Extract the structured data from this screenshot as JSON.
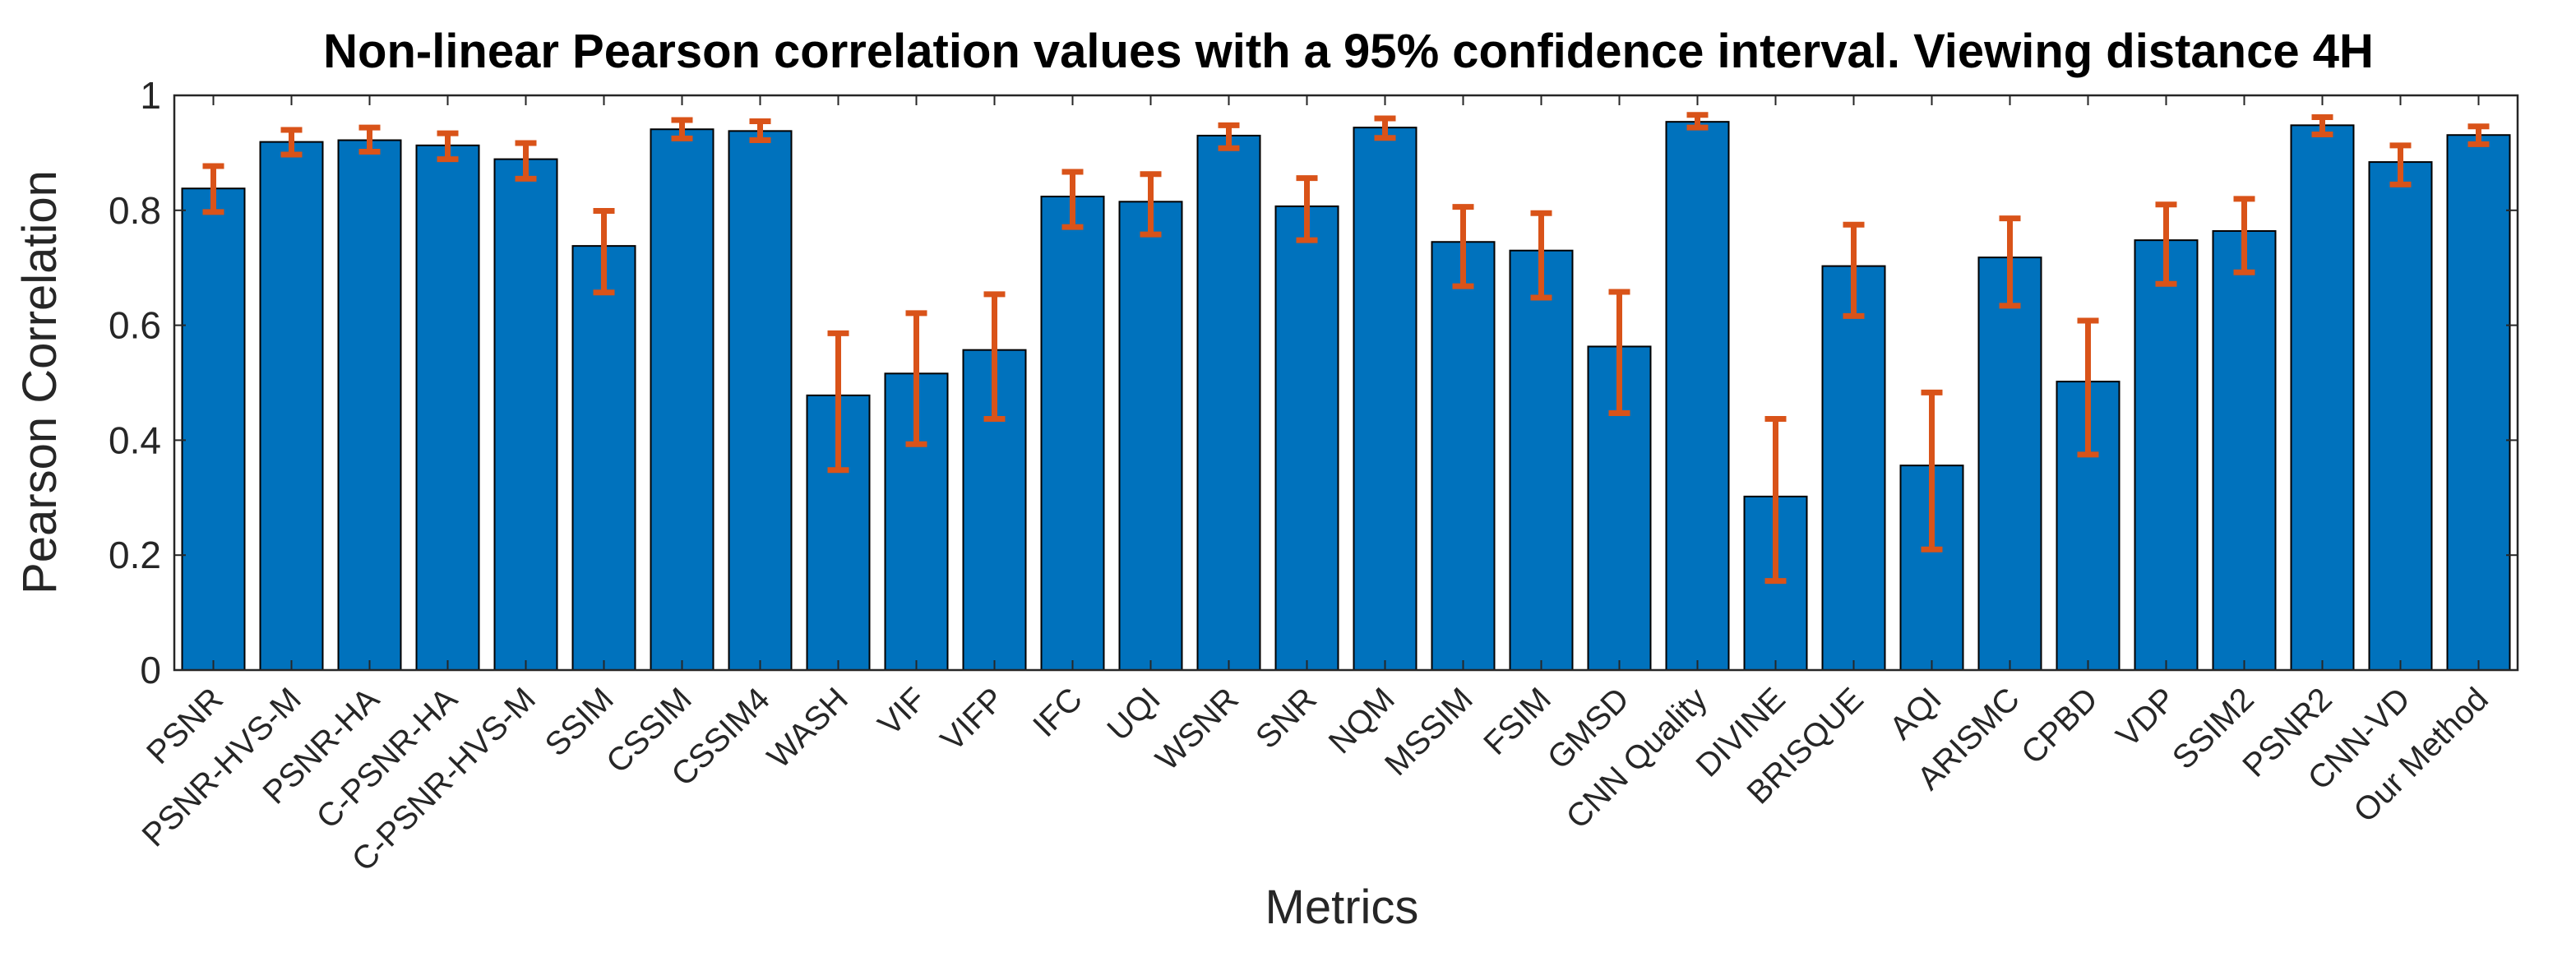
{
  "chart_data": {
    "type": "bar",
    "title": "Non-linear Pearson correlation values with a 95% confidence interval. Viewing distance 4H",
    "xlabel": "Metrics",
    "ylabel": "Pearson Correlation",
    "ylim": [
      0,
      1
    ],
    "yticks": [
      0,
      0.2,
      0.4,
      0.6,
      0.8,
      1
    ],
    "ytick_labels": [
      "0",
      "0.2",
      "0.4",
      "0.6",
      "0.8",
      "1"
    ],
    "grid": false,
    "categories": [
      "PSNR",
      "PSNR-HVS-M",
      "PSNR-HA",
      "C-PSNR-HA",
      "C-PSNR-HVS-M",
      "SSIM",
      "CSSIM",
      "CSSIM4",
      "WASH",
      "VIF",
      "VIFP",
      "IFC",
      "UQI",
      "WSNR",
      "SNR",
      "NQM",
      "MSSIM",
      "FSIM",
      "GMSD",
      "CNN Quality",
      "DIVINE",
      "BRISQUE",
      "AQI",
      "ARISMC",
      "CPBD",
      "VDP",
      "SSIM2",
      "PSNR2",
      "CNN-VD",
      "Our Method"
    ],
    "values": [
      0.838,
      0.919,
      0.922,
      0.913,
      0.889,
      0.738,
      0.941,
      0.938,
      0.478,
      0.516,
      0.557,
      0.824,
      0.815,
      0.93,
      0.807,
      0.944,
      0.745,
      0.73,
      0.563,
      0.954,
      0.302,
      0.703,
      0.356,
      0.718,
      0.502,
      0.748,
      0.764,
      0.948,
      0.884,
      0.931
    ],
    "ci_lower": [
      0.797,
      0.897,
      0.902,
      0.889,
      0.855,
      0.657,
      0.925,
      0.922,
      0.348,
      0.393,
      0.437,
      0.771,
      0.758,
      0.908,
      0.748,
      0.926,
      0.668,
      0.648,
      0.447,
      0.944,
      0.155,
      0.616,
      0.21,
      0.634,
      0.375,
      0.672,
      0.692,
      0.932,
      0.845,
      0.915
    ],
    "ci_upper": [
      0.877,
      0.94,
      0.944,
      0.934,
      0.917,
      0.799,
      0.957,
      0.955,
      0.586,
      0.621,
      0.654,
      0.867,
      0.863,
      0.948,
      0.856,
      0.96,
      0.806,
      0.795,
      0.658,
      0.966,
      0.437,
      0.775,
      0.483,
      0.786,
      0.608,
      0.81,
      0.82,
      0.962,
      0.913,
      0.946
    ],
    "colors": {
      "bar": "#0072BD",
      "errorbar": "#D95319",
      "axis": "#262626",
      "bar_edge": "#000000"
    }
  }
}
